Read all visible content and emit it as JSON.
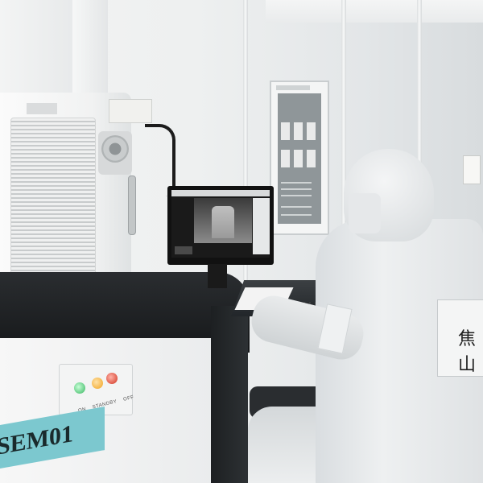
{
  "scene": {
    "equipment_id_label": "SEM01",
    "back_label_text": "焦山",
    "switch_labels": [
      "ON",
      "STANDBY",
      "OFF"
    ],
    "button_colors": {
      "on": "#36b45e",
      "standby": "#f0a21e",
      "off": "#d1331f"
    },
    "id_tag_color": "#7cc8cf"
  }
}
